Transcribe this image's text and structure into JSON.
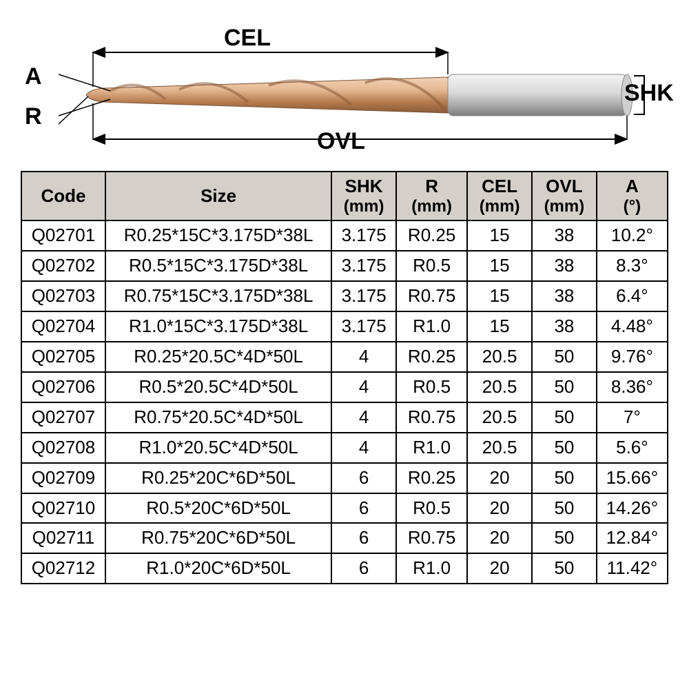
{
  "diagram": {
    "labels": {
      "A": "A",
      "R": "R",
      "CEL": "CEL",
      "OVL": "OVL",
      "SHK": "SHK"
    },
    "colors": {
      "flute_light": "#e6b892",
      "flute_dark": "#b47a4d",
      "shank_light": "#e8e8e8",
      "shank_dark": "#a8a8a8",
      "line": "#000000"
    },
    "label_fontsize": 34
  },
  "table": {
    "header_bg": "#d4cfc9",
    "border_color": "#000000",
    "font_size": 26,
    "columns": [
      {
        "key": "code",
        "label": "Code",
        "unit": ""
      },
      {
        "key": "size",
        "label": "Size",
        "unit": ""
      },
      {
        "key": "shk",
        "label": "SHK",
        "unit": "(mm)"
      },
      {
        "key": "r",
        "label": "R",
        "unit": "(mm)"
      },
      {
        "key": "cel",
        "label": "CEL",
        "unit": "(mm)"
      },
      {
        "key": "ovl",
        "label": "OVL",
        "unit": "(mm)"
      },
      {
        "key": "a",
        "label": "A",
        "unit": "(°)"
      }
    ],
    "rows": [
      {
        "code": "Q02701",
        "size": "R0.25*15C*3.175D*38L",
        "shk": "3.175",
        "r": "R0.25",
        "cel": "15",
        "ovl": "38",
        "a": "10.2°"
      },
      {
        "code": "Q02702",
        "size": "R0.5*15C*3.175D*38L",
        "shk": "3.175",
        "r": "R0.5",
        "cel": "15",
        "ovl": "38",
        "a": "8.3°"
      },
      {
        "code": "Q02703",
        "size": "R0.75*15C*3.175D*38L",
        "shk": "3.175",
        "r": "R0.75",
        "cel": "15",
        "ovl": "38",
        "a": "6.4°"
      },
      {
        "code": "Q02704",
        "size": "R1.0*15C*3.175D*38L",
        "shk": "3.175",
        "r": "R1.0",
        "cel": "15",
        "ovl": "38",
        "a": "4.48°"
      },
      {
        "code": "Q02705",
        "size": "R0.25*20.5C*4D*50L",
        "shk": "4",
        "r": "R0.25",
        "cel": "20.5",
        "ovl": "50",
        "a": "9.76°"
      },
      {
        "code": "Q02706",
        "size": "R0.5*20.5C*4D*50L",
        "shk": "4",
        "r": "R0.5",
        "cel": "20.5",
        "ovl": "50",
        "a": "8.36°"
      },
      {
        "code": "Q02707",
        "size": "R0.75*20.5C*4D*50L",
        "shk": "4",
        "r": "R0.75",
        "cel": "20.5",
        "ovl": "50",
        "a": "7°"
      },
      {
        "code": "Q02708",
        "size": "R1.0*20.5C*4D*50L",
        "shk": "4",
        "r": "R1.0",
        "cel": "20.5",
        "ovl": "50",
        "a": "5.6°"
      },
      {
        "code": "Q02709",
        "size": "R0.25*20C*6D*50L",
        "shk": "6",
        "r": "R0.25",
        "cel": "20",
        "ovl": "50",
        "a": "15.66°"
      },
      {
        "code": "Q02710",
        "size": "R0.5*20C*6D*50L",
        "shk": "6",
        "r": "R0.5",
        "cel": "20",
        "ovl": "50",
        "a": "14.26°"
      },
      {
        "code": "Q02711",
        "size": "R0.75*20C*6D*50L",
        "shk": "6",
        "r": "R0.75",
        "cel": "20",
        "ovl": "50",
        "a": "12.84°"
      },
      {
        "code": "Q02712",
        "size": "R1.0*20C*6D*50L",
        "shk": "6",
        "r": "R1.0",
        "cel": "20",
        "ovl": "50",
        "a": "11.42°"
      }
    ]
  }
}
